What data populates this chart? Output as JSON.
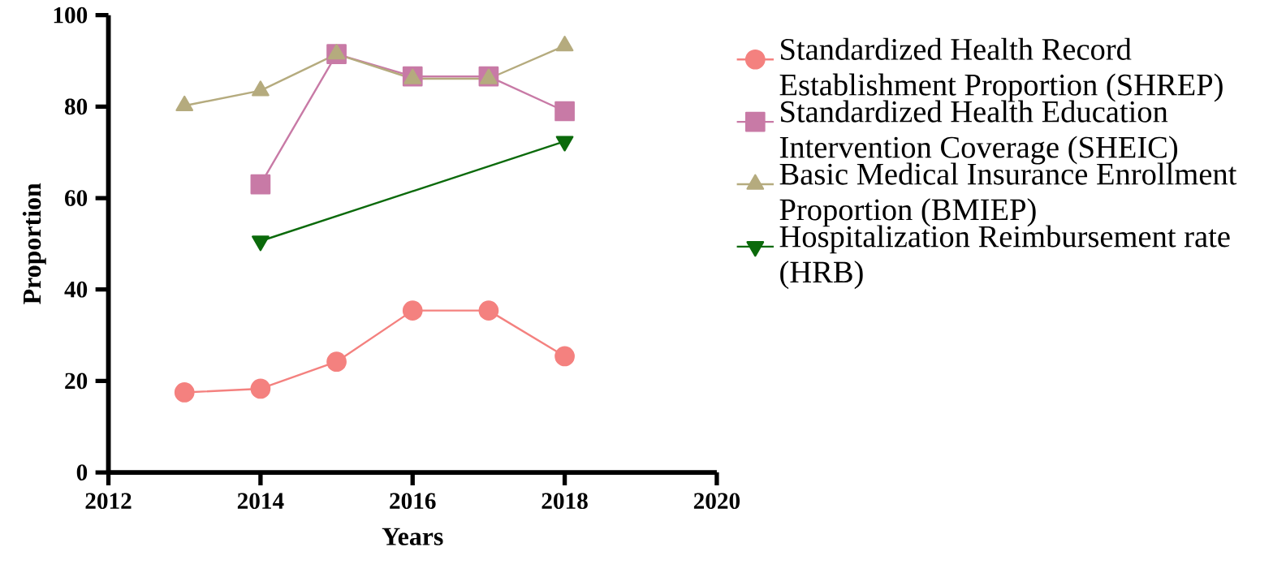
{
  "chart_data": {
    "type": "line",
    "xlabel": "Years",
    "ylabel": "Proportion",
    "xlim": [
      2012,
      2020
    ],
    "xticks": [
      2012,
      2014,
      2016,
      2018,
      2020
    ],
    "ylim": [
      0,
      100
    ],
    "yticks": [
      0,
      20,
      40,
      60,
      80,
      100
    ],
    "legend": "right",
    "grid": false,
    "series": [
      {
        "name": "Standardized Health Record Establishment Proportion (SHREP)",
        "color": "#f4817f",
        "marker": "circle",
        "x": [
          2013,
          2014,
          2015,
          2016,
          2017,
          2018
        ],
        "values": [
          17.5,
          18.3,
          24.2,
          35.4,
          35.4,
          25.4
        ]
      },
      {
        "name": "Standardized Health Education Intervention Coverage (SHEIC)",
        "color": "#c87aa6",
        "marker": "square",
        "x": [
          2014,
          2015,
          2016,
          2017,
          2018
        ],
        "values": [
          63.0,
          91.5,
          86.6,
          86.6,
          79.0
        ]
      },
      {
        "name": "Basic Medical Insurance Enrollment Proportion (BMIEP)",
        "color": "#b5ab7e",
        "marker": "triangle",
        "x": [
          2013,
          2014,
          2015,
          2016,
          2017,
          2018
        ],
        "values": [
          80.2,
          83.5,
          91.5,
          86.1,
          86.1,
          93.3
        ]
      },
      {
        "name": "Hospitalization Reimbursement rate (HRB)",
        "color": "#0b6a0b",
        "marker": "triangle down",
        "x": [
          2014,
          2018
        ],
        "values": [
          50.6,
          72.4
        ]
      }
    ]
  }
}
